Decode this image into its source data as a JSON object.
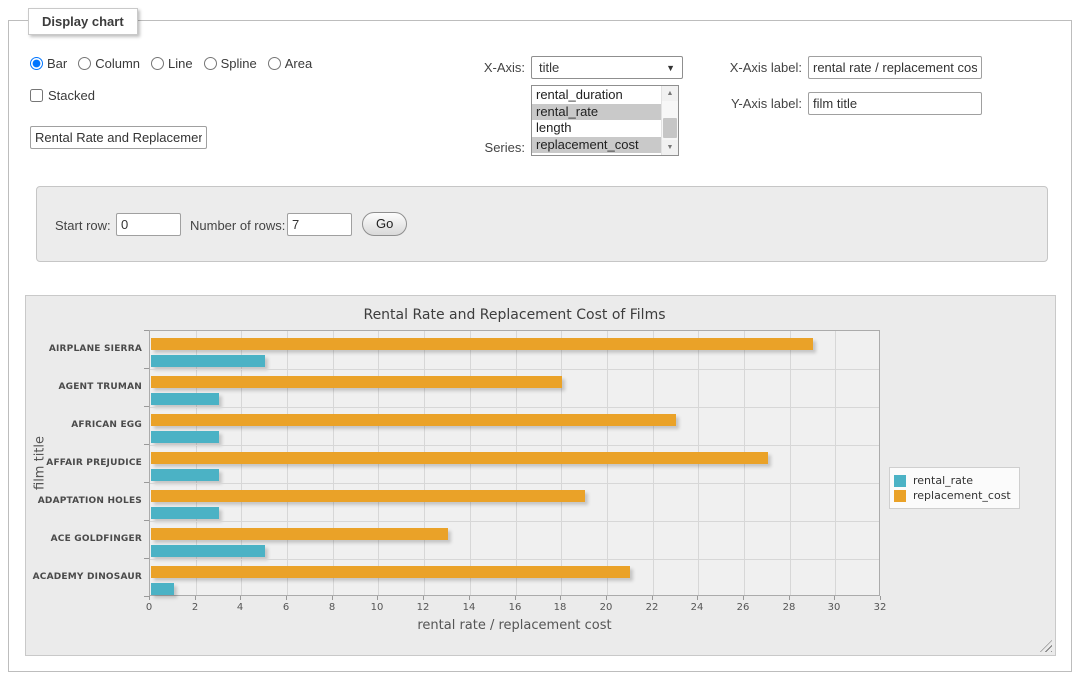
{
  "panel": {
    "title": "Display chart"
  },
  "chart_type": {
    "options": [
      {
        "label": "Bar",
        "selected": true
      },
      {
        "label": "Column",
        "selected": false
      },
      {
        "label": "Line",
        "selected": false
      },
      {
        "label": "Spline",
        "selected": false
      },
      {
        "label": "Area",
        "selected": false
      }
    ]
  },
  "stacked": {
    "label": "Stacked",
    "checked": false
  },
  "title_input": {
    "value": "Rental Rate and Replacement Cost of Films"
  },
  "x_axis": {
    "label": "X-Axis:",
    "selected": "title"
  },
  "series": {
    "label": "Series:",
    "options": [
      {
        "label": "rental_duration",
        "selected": false
      },
      {
        "label": "rental_rate",
        "selected": true
      },
      {
        "label": "length",
        "selected": false
      },
      {
        "label": "replacement_cost",
        "selected": true
      }
    ]
  },
  "x_axis_label": {
    "label": "X-Axis label:",
    "value": "rental rate / replacement cost"
  },
  "y_axis_label": {
    "label": "Y-Axis label:",
    "value": "film title"
  },
  "rows_form": {
    "start_row_label": "Start row:",
    "start_row_value": "0",
    "num_rows_label": "Number of rows:",
    "num_rows_value": "7",
    "go_label": "Go"
  },
  "icons": {
    "dropdown_arrow": "▼",
    "scroll_up": "▲",
    "scroll_down": "▼"
  },
  "chart_data": {
    "type": "bar",
    "orientation": "horizontal",
    "title": "Rental Rate and Replacement Cost of Films",
    "categories": [
      "AIRPLANE SIERRA",
      "AGENT TRUMAN",
      "AFRICAN EGG",
      "AFFAIR PREJUDICE",
      "ADAPTATION HOLES",
      "ACE GOLDFINGER",
      "ACADEMY DINOSAUR"
    ],
    "series": [
      {
        "name": "rental_rate",
        "color": "#4bb2c5",
        "values": [
          4.99,
          2.99,
          2.99,
          2.99,
          2.99,
          4.99,
          0.99
        ]
      },
      {
        "name": "replacement_cost",
        "color": "#EAA228",
        "values": [
          28.99,
          17.99,
          22.99,
          26.99,
          18.99,
          12.99,
          20.99
        ]
      }
    ],
    "xlabel": "rental rate / replacement cost",
    "ylabel": "film title",
    "xlim": [
      0,
      32
    ],
    "xticks": [
      0,
      2,
      4,
      6,
      8,
      10,
      12,
      14,
      16,
      18,
      20,
      22,
      24,
      26,
      28,
      30,
      32
    ],
    "legend": {
      "position": "right"
    },
    "grid": true
  }
}
